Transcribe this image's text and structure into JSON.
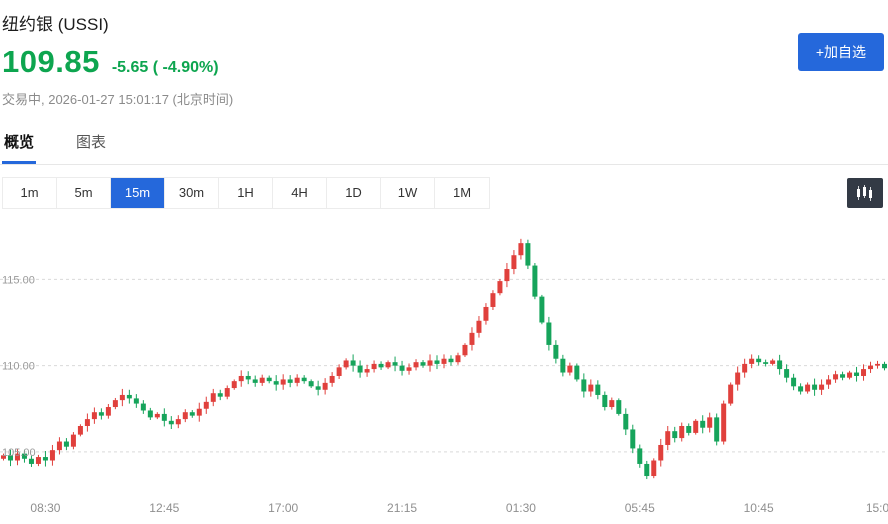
{
  "theme": {
    "green": "#0da54f",
    "blue": "#2568db"
  },
  "header": {
    "title": "纽约银 (USSI)",
    "price": "109.85",
    "change": "-5.65 ( -4.90%)",
    "status": "交易中, 2026-01-27 15:01:17 (北京时间)",
    "add_watchlist_label": "+加自选"
  },
  "tabs": [
    {
      "name": "overview",
      "label": "概览",
      "active": true
    },
    {
      "name": "chart",
      "label": "图表",
      "active": false
    }
  ],
  "timeframes": [
    {
      "label": "1m",
      "active": false
    },
    {
      "label": "5m",
      "active": false
    },
    {
      "label": "15m",
      "active": true
    },
    {
      "label": "30m",
      "active": false
    },
    {
      "label": "1H",
      "active": false
    },
    {
      "label": "4H",
      "active": false
    },
    {
      "label": "1D",
      "active": false
    },
    {
      "label": "1W",
      "active": false
    },
    {
      "label": "1M",
      "active": false
    }
  ],
  "chart_data": {
    "type": "candlestick",
    "interval": "15m",
    "ylim": [
      102.5,
      118.5
    ],
    "open_start": 104.6,
    "closes": [
      104.8,
      104.5,
      104.9,
      104.6,
      104.3,
      104.7,
      104.5,
      105.1,
      105.6,
      105.3,
      106.0,
      106.5,
      106.9,
      107.3,
      107.1,
      107.6,
      108.0,
      108.3,
      108.1,
      107.8,
      107.4,
      107.0,
      107.2,
      106.8,
      106.6,
      106.9,
      107.3,
      107.1,
      107.5,
      107.9,
      108.4,
      108.2,
      108.7,
      109.1,
      109.4,
      109.2,
      109.0,
      109.3,
      109.1,
      108.9,
      109.2,
      109.0,
      109.3,
      109.1,
      108.8,
      108.6,
      109.0,
      109.4,
      109.9,
      110.3,
      110.0,
      109.6,
      109.8,
      110.1,
      109.9,
      110.2,
      110.0,
      109.7,
      109.9,
      110.2,
      110.0,
      110.3,
      110.1,
      110.4,
      110.2,
      110.6,
      111.2,
      111.9,
      112.6,
      113.4,
      114.2,
      114.9,
      115.6,
      116.4,
      117.1,
      115.8,
      114.0,
      112.5,
      111.2,
      110.4,
      109.6,
      110.0,
      109.2,
      108.5,
      108.9,
      108.3,
      107.6,
      108.0,
      107.2,
      106.3,
      105.2,
      104.3,
      103.6,
      104.5,
      105.4,
      106.2,
      105.8,
      106.5,
      106.1,
      106.8,
      106.4,
      107.0,
      105.6,
      107.8,
      108.9,
      109.6,
      110.1,
      110.4,
      110.2,
      110.1,
      110.3,
      109.8,
      109.3,
      108.8,
      108.5,
      108.9,
      108.6,
      108.9,
      109.2,
      109.5,
      109.3,
      109.6,
      109.4,
      109.8,
      110.0,
      110.1,
      109.85
    ],
    "y_ticks": [
      {
        "label": "115.00",
        "value": 115
      },
      {
        "label": "110.00",
        "value": 110
      },
      {
        "label": "105.00",
        "value": 105
      }
    ],
    "x_ticks": [
      {
        "label": "08:30",
        "index": 6
      },
      {
        "label": "12:45",
        "index": 23
      },
      {
        "label": "17:00",
        "index": 40
      },
      {
        "label": "21:15",
        "index": 57
      },
      {
        "label": "01:30",
        "index": 74
      },
      {
        "label": "05:45",
        "index": 91
      },
      {
        "label": "10:45",
        "index": 108
      },
      {
        "label": "15:0",
        "index": 125
      }
    ],
    "colors": {
      "up": "#e0403c",
      "down": "#16a45b",
      "grid": "#d9d9d9",
      "axis_text": "#999999"
    }
  }
}
